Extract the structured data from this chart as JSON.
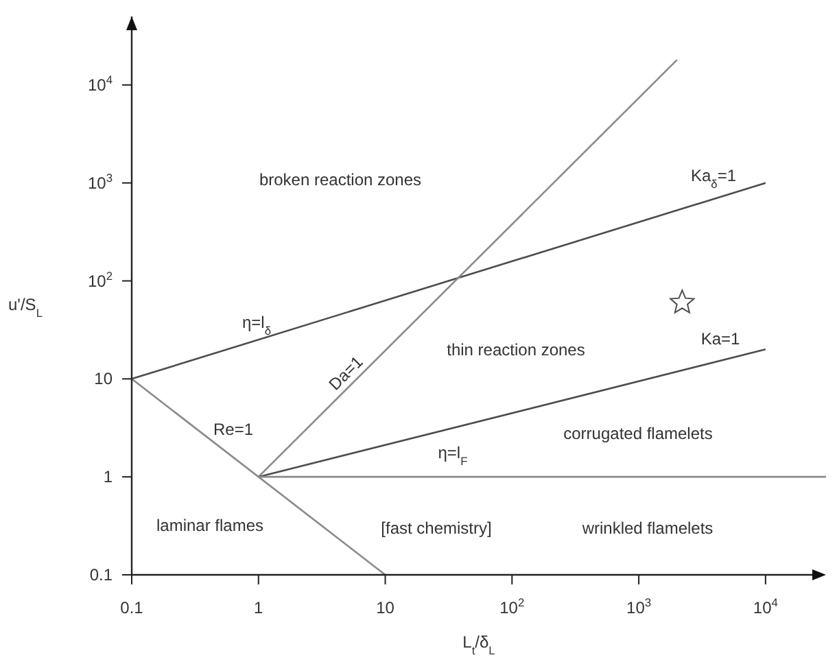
{
  "chart_data": {
    "type": "line",
    "xlabel": "L$_{t}$/δ$_{L}$",
    "ylabel": "u'/S$_{L}$",
    "log": "xy",
    "grid": false,
    "line_style": "solid",
    "xlim": [
      0.1,
      30000
    ],
    "ylim": [
      0.1,
      50000
    ],
    "xticks": [
      0.1,
      1,
      10,
      {
        "value": 100,
        "label": "10$^{2}$"
      },
      {
        "value": 1000,
        "label": "10$^{3}$"
      },
      {
        "value": 10000,
        "label": "10$^{4}$"
      }
    ],
    "yticks": [
      0.1,
      1,
      10,
      {
        "value": 100,
        "label": "10$^{2}$"
      },
      {
        "value": 1000,
        "label": "10$^{3}$"
      },
      {
        "value": 10000,
        "label": "10$^{4}$"
      }
    ],
    "series": [
      {
        "color": "#4d4d4d",
        "x": [
          0.1,
          10000
        ],
        "values": [
          10,
          1000
        ],
        "marker": "none"
      },
      {
        "color": "#8a8a8a",
        "x": [
          0.1,
          10
        ],
        "values": [
          10,
          0.1
        ],
        "marker": "none"
      },
      {
        "color": "#8a8a8a",
        "x": [
          1,
          2000
        ],
        "values": [
          1,
          18000
        ],
        "marker": "none"
      },
      {
        "color": "#4d4d4d",
        "x": [
          1,
          10000
        ],
        "values": [
          1,
          20
        ],
        "marker": "none"
      },
      {
        "color": "#8a8a8a",
        "x": [
          1,
          30000
        ],
        "values": [
          1,
          1
        ],
        "marker": "none"
      },
      {
        "type": "scatter",
        "color": "#4d4d4d",
        "x": [
          2200
        ],
        "values": [
          60
        ],
        "marker": "star"
      }
    ],
    "annotations": [
      "broken reaction zones",
      "Ka$_{δ}$=1",
      "η=l$_{δ}$",
      "Da=1",
      "thin reaction zones",
      "Ka=1",
      "Re=1",
      "η=l$_{F}$",
      "corrugated flamelets",
      "laminar flames",
      "[fast chemistry]",
      "wrinkled flamelets"
    ]
  }
}
